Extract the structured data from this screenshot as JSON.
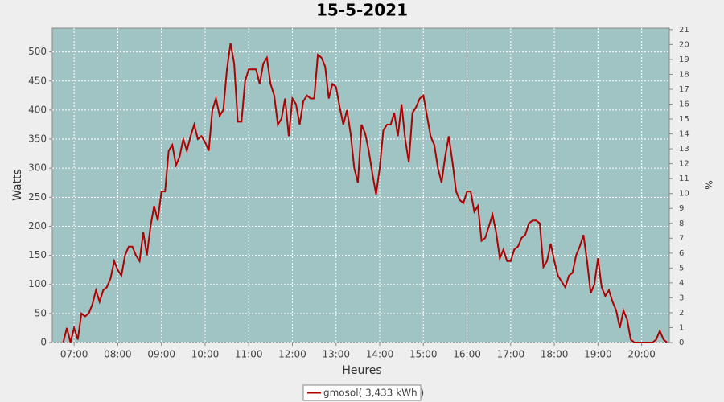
{
  "chart_data": {
    "type": "line",
    "title": "15-5-2021",
    "x_label": "Heures",
    "y_label": "Watts",
    "y2_label": "%",
    "x": [
      "06:45",
      "06:50",
      "06:55",
      "07:00",
      "07:05",
      "07:10",
      "07:15",
      "07:20",
      "07:25",
      "07:30",
      "07:35",
      "07:40",
      "07:45",
      "07:50",
      "07:55",
      "08:00",
      "08:05",
      "08:10",
      "08:15",
      "08:20",
      "08:25",
      "08:30",
      "08:35",
      "08:40",
      "08:45",
      "08:50",
      "08:55",
      "09:00",
      "09:05",
      "09:10",
      "09:15",
      "09:20",
      "09:25",
      "09:30",
      "09:35",
      "09:40",
      "09:45",
      "09:50",
      "09:55",
      "10:00",
      "10:05",
      "10:10",
      "10:15",
      "10:20",
      "10:25",
      "10:30",
      "10:35",
      "10:40",
      "10:45",
      "10:50",
      "10:55",
      "11:00",
      "11:05",
      "11:10",
      "11:15",
      "11:20",
      "11:25",
      "11:30",
      "11:35",
      "11:40",
      "11:45",
      "11:50",
      "11:55",
      "12:00",
      "12:05",
      "12:10",
      "12:15",
      "12:20",
      "12:25",
      "12:30",
      "12:35",
      "12:40",
      "12:45",
      "12:50",
      "12:55",
      "13:00",
      "13:05",
      "13:10",
      "13:15",
      "13:20",
      "13:25",
      "13:30",
      "13:35",
      "13:40",
      "13:45",
      "13:50",
      "13:55",
      "14:00",
      "14:05",
      "14:10",
      "14:15",
      "14:20",
      "14:25",
      "14:30",
      "14:35",
      "14:40",
      "14:45",
      "14:50",
      "14:55",
      "15:00",
      "15:05",
      "15:10",
      "15:15",
      "15:20",
      "15:25",
      "15:30",
      "15:35",
      "15:40",
      "15:45",
      "15:50",
      "15:55",
      "16:00",
      "16:05",
      "16:10",
      "16:15",
      "16:20",
      "16:25",
      "16:30",
      "16:35",
      "16:40",
      "16:45",
      "16:50",
      "16:55",
      "17:00",
      "17:05",
      "17:10",
      "17:15",
      "17:20",
      "17:25",
      "17:30",
      "17:35",
      "17:40",
      "17:45",
      "17:50",
      "17:55",
      "18:00",
      "18:05",
      "18:10",
      "18:15",
      "18:20",
      "18:25",
      "18:30",
      "18:35",
      "18:40",
      "18:45",
      "18:50",
      "18:55",
      "19:00",
      "19:05",
      "19:10",
      "19:15",
      "19:20",
      "19:25",
      "19:30",
      "19:35",
      "19:40",
      "19:45",
      "19:50",
      "19:55",
      "20:00",
      "20:05",
      "20:10",
      "20:15",
      "20:20",
      "20:25",
      "20:30",
      "20:35"
    ],
    "series": [
      {
        "name": "gmosol( 3,433 kWh )",
        "color": "#b00000",
        "values": [
          0,
          25,
          0,
          25,
          5,
          50,
          45,
          50,
          65,
          90,
          70,
          90,
          95,
          110,
          140,
          125,
          115,
          150,
          165,
          165,
          150,
          140,
          190,
          150,
          200,
          235,
          210,
          260,
          260,
          330,
          340,
          305,
          320,
          350,
          330,
          355,
          375,
          350,
          355,
          345,
          330,
          400,
          420,
          390,
          400,
          470,
          515,
          480,
          380,
          380,
          450,
          470,
          470,
          470,
          445,
          480,
          490,
          445,
          425,
          375,
          385,
          420,
          355,
          420,
          410,
          375,
          415,
          425,
          420,
          420,
          495,
          490,
          475,
          420,
          445,
          440,
          405,
          375,
          400,
          360,
          300,
          275,
          375,
          360,
          330,
          290,
          255,
          300,
          365,
          375,
          375,
          395,
          355,
          410,
          350,
          310,
          395,
          405,
          420,
          425,
          390,
          355,
          340,
          300,
          275,
          320,
          355,
          310,
          260,
          245,
          240,
          260,
          260,
          225,
          235,
          175,
          180,
          200,
          220,
          190,
          145,
          160,
          140,
          140,
          160,
          165,
          180,
          185,
          205,
          210,
          210,
          205,
          130,
          140,
          170,
          140,
          115,
          105,
          95,
          115,
          120,
          150,
          165,
          185,
          140,
          85,
          100,
          145,
          95,
          80,
          90,
          70,
          55,
          25,
          55,
          40,
          5,
          0,
          0,
          0,
          0,
          0,
          0,
          5,
          20,
          5,
          0
        ]
      }
    ],
    "xlim": [
      "06:30",
      "20:38"
    ],
    "xticks": [
      "07:00",
      "08:00",
      "09:00",
      "10:00",
      "11:00",
      "12:00",
      "13:00",
      "14:00",
      "15:00",
      "16:00",
      "17:00",
      "18:00",
      "19:00",
      "20:00"
    ],
    "ylim": [
      0,
      541
    ],
    "yticks": [
      0,
      50,
      100,
      150,
      200,
      250,
      300,
      350,
      400,
      450,
      500
    ],
    "y2lim": [
      0,
      21.1
    ],
    "y2ticks": [
      0,
      1,
      2,
      3,
      4,
      5,
      6,
      7,
      8,
      9,
      10,
      11,
      12,
      13,
      14,
      15,
      16,
      17,
      18,
      19,
      20,
      21
    ],
    "grid": true,
    "plot_background": "#a0c4c4",
    "legend": "bottom"
  }
}
